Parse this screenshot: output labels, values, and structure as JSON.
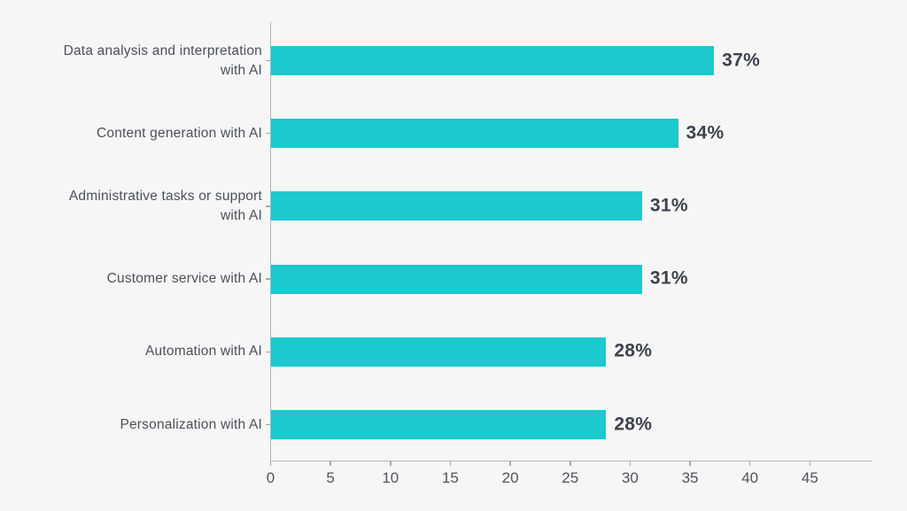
{
  "chart_data": {
    "type": "bar",
    "orientation": "horizontal",
    "title": "",
    "xlabel": "",
    "ylabel": "",
    "legend": "none",
    "grid": "off",
    "categories": [
      "Data analysis and interpretation with AI",
      "Content generation with AI",
      "Administrative tasks or support with AI",
      "Customer service with AI",
      "Automation with AI",
      "Personalization with AI"
    ],
    "values": [
      37,
      34,
      31,
      31,
      28,
      28
    ],
    "value_labels": [
      "37%",
      "34%",
      "31%",
      "31%",
      "28%",
      "28%"
    ],
    "x_ticks": [
      0,
      5,
      10,
      15,
      20,
      25,
      30,
      35,
      40,
      45
    ],
    "xlim": [
      0,
      50
    ],
    "colors": {
      "bar": "#1BC9CE",
      "category_label": "#4C515A",
      "value_label": "#3D424B",
      "tick_label": "#4F545C",
      "axis": "#B3B6B8",
      "background": "#F6F6F6"
    }
  }
}
